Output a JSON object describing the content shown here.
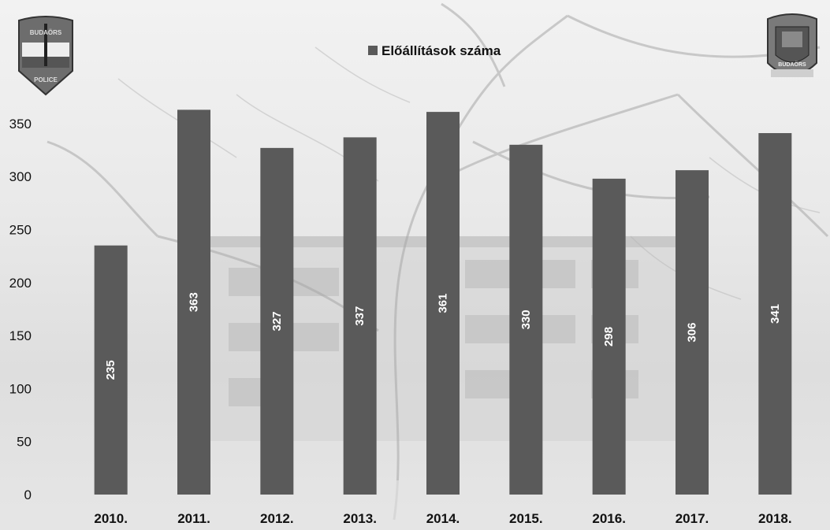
{
  "chart_data": {
    "type": "bar",
    "categories": [
      "2010.",
      "2011.",
      "2012.",
      "2013.",
      "2014.",
      "2015.",
      "2016.",
      "2017.",
      "2018."
    ],
    "series": [
      {
        "name": "Előállítások száma",
        "values": [
          235,
          363,
          327,
          337,
          361,
          330,
          298,
          306,
          341
        ],
        "color": "#5a5a5a"
      }
    ],
    "data_labels": [
      "235",
      "363",
      "327",
      "337",
      "361",
      "330",
      "298",
      "306",
      "341"
    ],
    "y_ticks": [
      "0",
      "50",
      "100",
      "150",
      "200",
      "250",
      "300",
      "350"
    ],
    "ylim": [
      0,
      370
    ],
    "legend_position": "top-center",
    "grid": false,
    "title": "",
    "xlabel": "",
    "ylabel": ""
  },
  "badges": {
    "left_badge_text": [
      "BUDAÖRS",
      "POLICE"
    ],
    "right_badge_text": [
      "BUDAÖRS"
    ]
  }
}
